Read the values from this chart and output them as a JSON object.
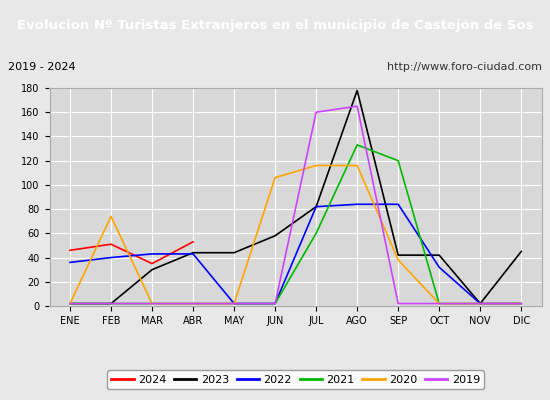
{
  "title": "Evolucion Nº Turistas Extranjeros en el municipio de Castejón de Sos",
  "subtitle_left": "2019 - 2024",
  "subtitle_right": "http://www.foro-ciudad.com",
  "title_bg": "#4472c4",
  "title_color": "#ffffff",
  "months": [
    "ENE",
    "FEB",
    "MAR",
    "ABR",
    "MAY",
    "JUN",
    "JUL",
    "AGO",
    "SEP",
    "OCT",
    "NOV",
    "DIC"
  ],
  "ylim": [
    0,
    180
  ],
  "yticks": [
    0,
    20,
    40,
    60,
    80,
    100,
    120,
    140,
    160,
    180
  ],
  "series": {
    "2024": {
      "color": "#ff0000",
      "data": [
        46,
        51,
        35,
        53,
        null,
        null,
        null,
        null,
        null,
        null,
        null,
        null
      ]
    },
    "2023": {
      "color": "#000000",
      "data": [
        2,
        2,
        30,
        44,
        44,
        58,
        82,
        178,
        42,
        42,
        2,
        45
      ]
    },
    "2022": {
      "color": "#0000ff",
      "data": [
        36,
        40,
        43,
        43,
        2,
        2,
        82,
        84,
        84,
        32,
        2,
        2
      ]
    },
    "2021": {
      "color": "#00bb00",
      "data": [
        2,
        2,
        2,
        2,
        2,
        2,
        60,
        133,
        120,
        2,
        2,
        2
      ]
    },
    "2020": {
      "color": "#ffa500",
      "data": [
        2,
        74,
        2,
        2,
        2,
        106,
        116,
        116,
        38,
        2,
        2,
        2
      ]
    },
    "2019": {
      "color": "#cc44ff",
      "data": [
        2,
        2,
        2,
        2,
        2,
        2,
        160,
        165,
        2,
        2,
        2,
        2
      ]
    }
  },
  "legend_order": [
    "2024",
    "2023",
    "2022",
    "2021",
    "2020",
    "2019"
  ],
  "bg_color": "#e8e8e8",
  "plot_bg": "#d8d8d8",
  "grid_color": "#ffffff",
  "subtitle_bg": "#f5f5f5"
}
